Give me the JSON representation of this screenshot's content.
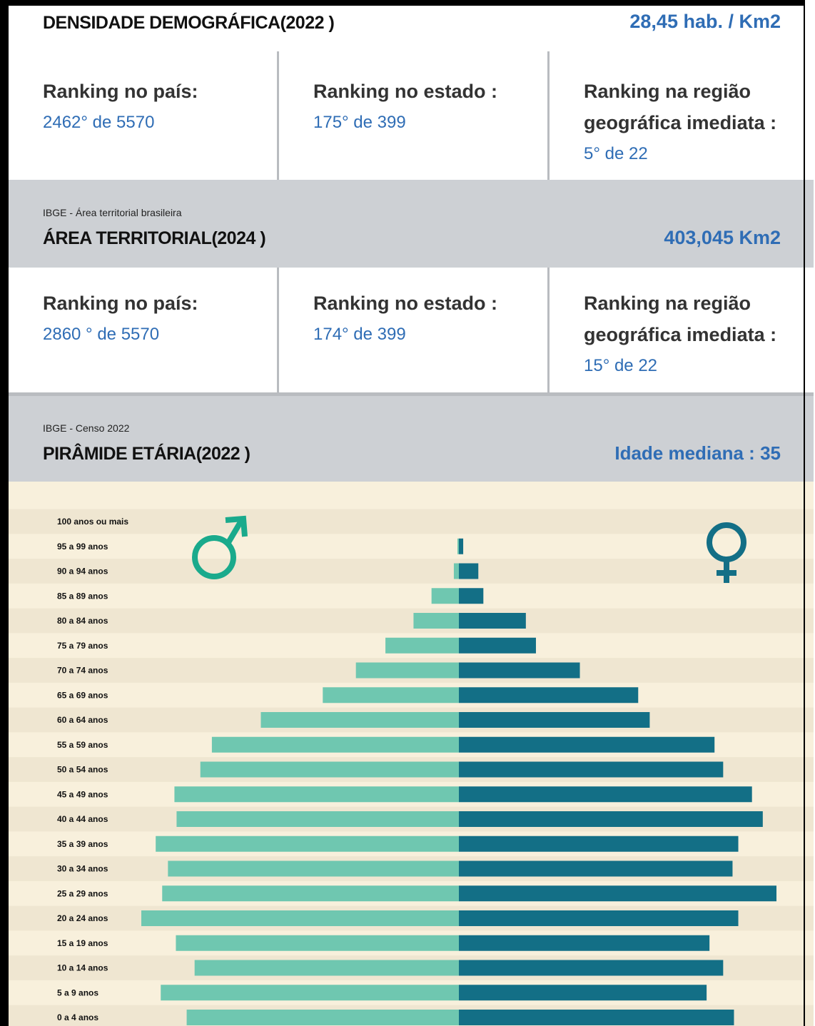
{
  "density": {
    "title": "DENSIDADE DEMOGRÁFICA(2022 )",
    "value": "28,45 hab. /  Km2",
    "rankings": [
      {
        "label": "Ranking no país:",
        "value": "2462° de 5570"
      },
      {
        "label": "Ranking no estado :",
        "value": "175° de 399"
      },
      {
        "label": "Ranking na região geográfica imediata :",
        "value": "5° de 22"
      }
    ]
  },
  "area": {
    "source": "IBGE - Área territorial brasileira",
    "title": "ÁREA TERRITORIAL(2024 )",
    "value": "403,045  Km2",
    "rankings": [
      {
        "label": "Ranking no país:",
        "value": "2860 ° de 5570"
      },
      {
        "label": "Ranking no estado :",
        "value": "174° de 399"
      },
      {
        "label": "Ranking na região geográfica imediata :",
        "value": "15° de 22"
      }
    ]
  },
  "pyramid": {
    "source": "IBGE - Censo 2022",
    "title": "PIRÂMIDE ETÁRIA(2022 )",
    "median": "Idade mediana : 35"
  },
  "chart_data": {
    "type": "pyramid",
    "categories": [
      "100 anos ou mais",
      "95 a 99 anos",
      "90 a 94 anos",
      "85 a 89 anos",
      "80 a 84 anos",
      "75 a 79 anos",
      "70 a 74 anos",
      "65 a 69 anos",
      "60 a 64 anos",
      "55 a 59 anos",
      "50 a 54 anos",
      "45 a 49 anos",
      "40 a 44 anos",
      "35 a 39 anos",
      "30 a 34 anos",
      "25 a 29 anos",
      "20 a 24 anos",
      "15 a 19 anos",
      "10 a 14 anos",
      "5 a 9 anos",
      "0 a 4 anos"
    ],
    "series": [
      {
        "color": "#6fc7b0",
        "values": [
          0,
          2,
          7,
          38,
          63,
          102,
          143,
          189,
          275,
          343,
          359,
          395,
          392,
          421,
          404,
          412,
          441,
          393,
          367,
          414,
          378
        ]
      },
      {
        "color": "#136f86",
        "values": [
          0,
          6,
          27,
          34,
          93,
          107,
          168,
          249,
          265,
          355,
          367,
          407,
          422,
          388,
          380,
          441,
          388,
          348,
          367,
          344,
          382
        ]
      }
    ]
  }
}
